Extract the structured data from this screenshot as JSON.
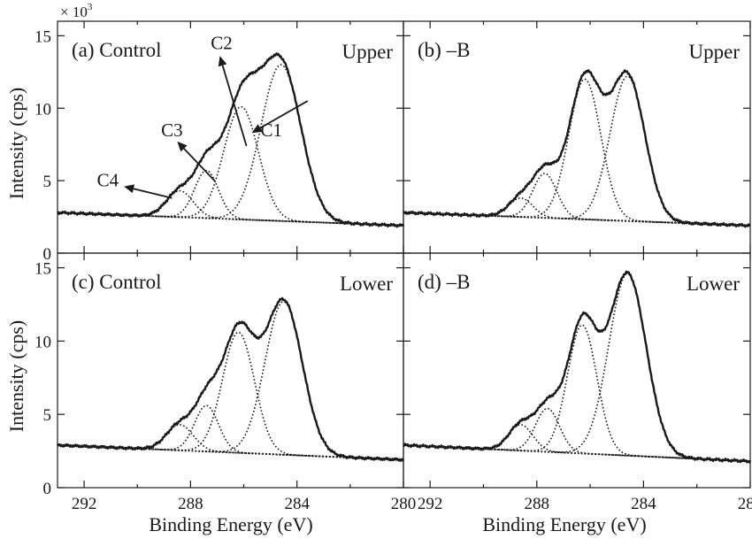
{
  "chart_data": {
    "type": "line",
    "xlabel": "Binding Energy (eV)",
    "ylabel": "Intensity (cps)",
    "y_multiplier": "× 10",
    "y_multiplier_exp": "3",
    "xlim": [
      293,
      280
    ],
    "ylim": [
      0,
      16
    ],
    "xticks": [
      "292",
      "288",
      "284",
      "280"
    ],
    "yticks": [
      "0",
      "5",
      "10",
      "15"
    ],
    "grid": false,
    "panels": [
      {
        "label": "(a)",
        "condition": "Control",
        "position": "Upper",
        "baseline": [
          2.8,
          1.9
        ],
        "components": [
          {
            "name": "C1",
            "center": 284.6,
            "height": 13.0,
            "width": 0.75
          },
          {
            "name": "C2",
            "center": 286.1,
            "height": 10.1,
            "width": 0.65
          },
          {
            "name": "C3",
            "center": 287.4,
            "height": 5.7,
            "width": 0.45
          },
          {
            "name": "C4",
            "center": 288.4,
            "height": 4.3,
            "width": 0.5
          }
        ],
        "annotations": [
          {
            "text": "C1",
            "tip": [
              285.7,
              8.3
            ],
            "tail": [
              283.6,
              10.5
            ]
          },
          {
            "text": "C2",
            "tip": [
              286.9,
              13.6
            ],
            "tail": [
              285.9,
              7.4
            ]
          },
          {
            "text": "C3",
            "tip": [
              288.5,
              7.7
            ],
            "tail": [
              287.1,
              5.0
            ]
          },
          {
            "text": "C4",
            "tip": [
              290.5,
              4.6
            ],
            "tail": [
              288.7,
              3.8
            ]
          }
        ]
      },
      {
        "label": "(b)",
        "condition": "–B",
        "position": "Upper",
        "baseline": [
          2.8,
          1.9
        ],
        "components": [
          {
            "name": "C1",
            "center": 284.6,
            "height": 12.2,
            "width": 0.65
          },
          {
            "name": "C2",
            "center": 286.2,
            "height": 12.0,
            "width": 0.6
          },
          {
            "name": "C3",
            "center": 287.7,
            "height": 5.5,
            "width": 0.45
          },
          {
            "name": "C4",
            "center": 288.6,
            "height": 3.8,
            "width": 0.45
          }
        ],
        "annotations": []
      },
      {
        "label": "(c)",
        "condition": "Control",
        "position": "Lower",
        "baseline": [
          2.9,
          1.9
        ],
        "components": [
          {
            "name": "C1",
            "center": 284.5,
            "height": 12.7,
            "width": 0.7
          },
          {
            "name": "C2",
            "center": 286.2,
            "height": 10.6,
            "width": 0.6
          },
          {
            "name": "C3",
            "center": 287.4,
            "height": 5.6,
            "width": 0.45
          },
          {
            "name": "C4",
            "center": 288.4,
            "height": 4.3,
            "width": 0.5
          }
        ],
        "annotations": []
      },
      {
        "label": "(d)",
        "condition": "–B",
        "position": "Lower",
        "baseline": [
          2.9,
          1.8
        ],
        "components": [
          {
            "name": "C1",
            "center": 284.6,
            "height": 14.6,
            "width": 0.7
          },
          {
            "name": "C2",
            "center": 286.3,
            "height": 11.1,
            "width": 0.55
          },
          {
            "name": "C3",
            "center": 287.6,
            "height": 5.4,
            "width": 0.45
          },
          {
            "name": "C4",
            "center": 288.6,
            "height": 4.3,
            "width": 0.45
          }
        ],
        "annotations": []
      }
    ]
  }
}
